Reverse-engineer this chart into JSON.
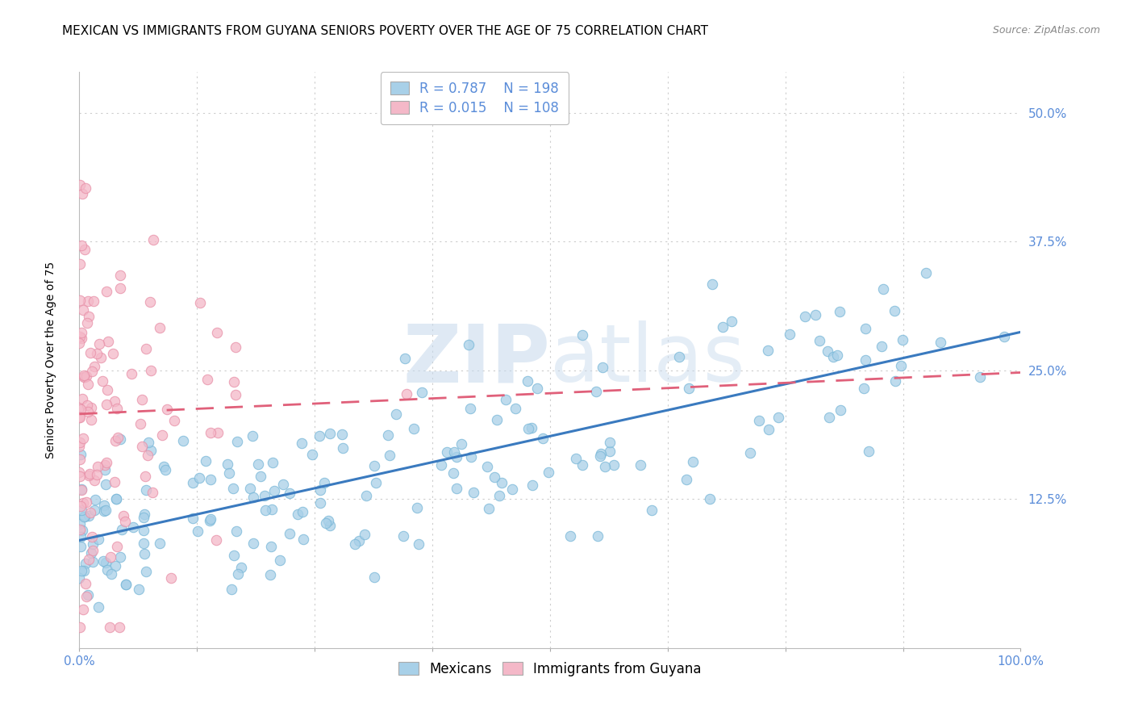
{
  "title": "MEXICAN VS IMMIGRANTS FROM GUYANA SENIORS POVERTY OVER THE AGE OF 75 CORRELATION CHART",
  "source": "Source: ZipAtlas.com",
  "ylabel": "Seniors Poverty Over the Age of 75",
  "xlim": [
    0,
    1.0
  ],
  "ylim": [
    -0.02,
    0.54
  ],
  "xticks": [
    0.0,
    0.125,
    0.25,
    0.375,
    0.5,
    0.625,
    0.75,
    0.875,
    1.0
  ],
  "xticklabels": [
    "0.0%",
    "",
    "",
    "",
    "",
    "",
    "",
    "",
    "100.0%"
  ],
  "yticks": [
    0.0,
    0.125,
    0.25,
    0.375,
    0.5
  ],
  "yticklabels": [
    "",
    "12.5%",
    "25.0%",
    "37.5%",
    "50.0%"
  ],
  "watermark_zip": "ZIP",
  "watermark_atlas": "atlas",
  "legend_r1": "R = 0.787",
  "legend_n1": "N = 198",
  "legend_r2": "R = 0.015",
  "legend_n2": "N = 108",
  "color_mexican": "#a8d0e8",
  "color_mexican_edge": "#7ab8d8",
  "color_guyana": "#f4b8c8",
  "color_guyana_edge": "#e890a8",
  "color_mexican_line": "#3a7abf",
  "color_guyana_line": "#e0607a",
  "background_color": "#ffffff",
  "grid_color": "#cccccc",
  "tick_color": "#5b8dd9",
  "title_fontsize": 11,
  "axis_label_fontsize": 10,
  "tick_fontsize": 11,
  "legend_fontsize": 12,
  "source_fontsize": 9,
  "mex_slope": 0.185,
  "mex_intercept": 0.085,
  "guy_slope": 0.015,
  "guy_intercept": 0.195
}
